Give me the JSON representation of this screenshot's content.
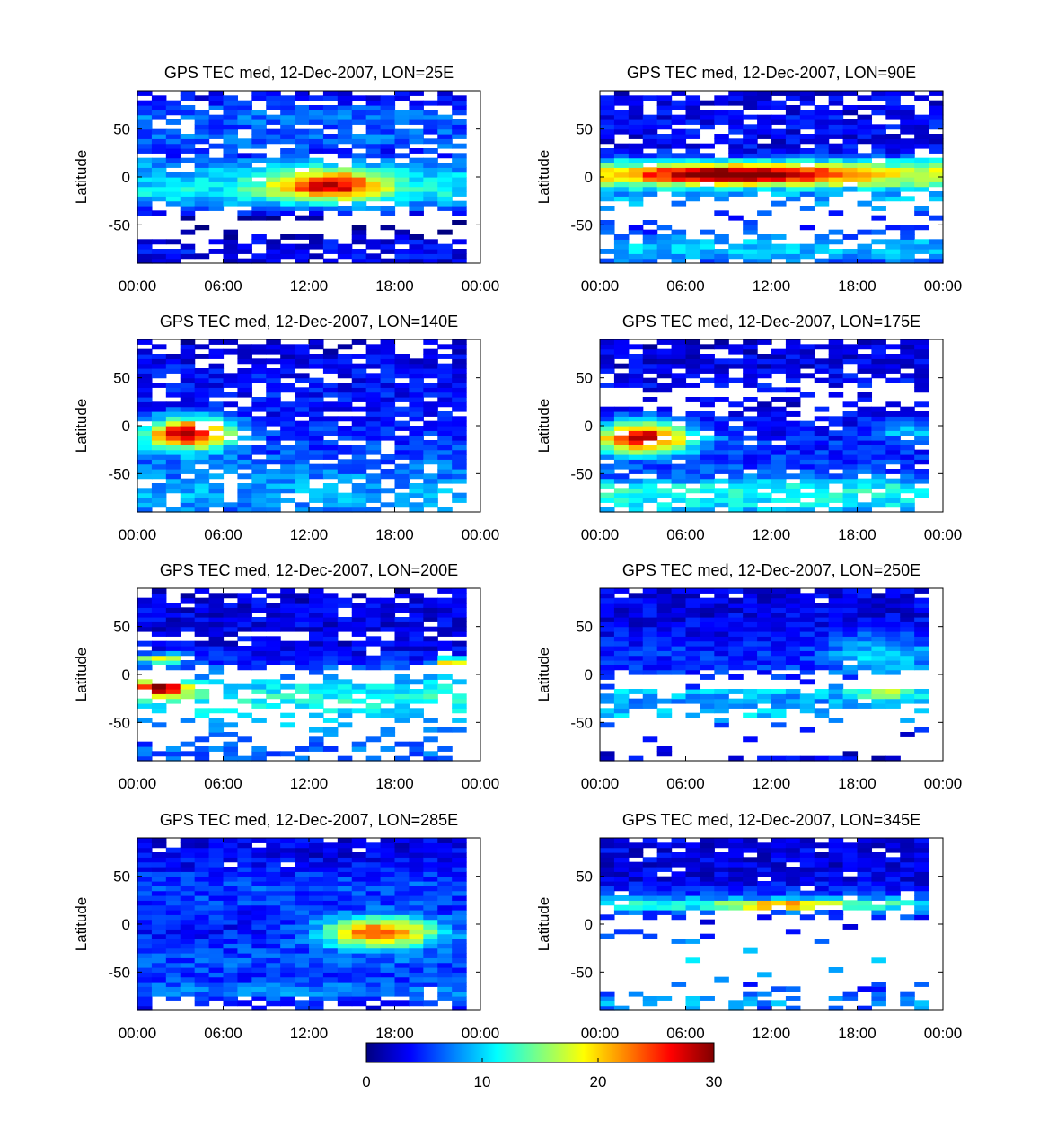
{
  "figure": {
    "ylabel": "Latitude",
    "colorbar": {
      "min": 0,
      "max": 30,
      "tick_labels": [
        "0",
        "10",
        "20",
        "30"
      ],
      "tick_values": [
        0,
        10,
        20,
        30
      ],
      "colormap": "jet"
    }
  },
  "chart_data": [
    {
      "type": "heatmap",
      "title": "GPS TEC med, 12-Dec-2007, LON=25E",
      "ylabel": "Latitude",
      "x_ticks": [
        "00:00",
        "06:00",
        "12:00",
        "18:00",
        "00:00"
      ],
      "y_ticks": [
        "50",
        "0",
        "-50"
      ],
      "y_tick_values": [
        50,
        0,
        -50
      ],
      "xlim_hours": [
        0,
        24
      ],
      "ylim": [
        -90,
        90
      ],
      "bin": {
        "hours": 1,
        "lat": 5
      },
      "data_end_hour": 23,
      "lat_profile": [
        [
          -90,
          2,
          0.5
        ],
        [
          -80,
          4,
          0.9
        ],
        [
          -65,
          3,
          0.6
        ],
        [
          -55,
          0,
          0.1
        ],
        [
          -45,
          0,
          0.15
        ],
        [
          -35,
          5,
          0.75
        ],
        [
          -25,
          9,
          0.95
        ],
        [
          -15,
          11,
          1
        ],
        [
          -5,
          10,
          1
        ],
        [
          5,
          9,
          0.95
        ],
        [
          15,
          8,
          0.9
        ],
        [
          25,
          4,
          0.6
        ],
        [
          35,
          7,
          0.9
        ],
        [
          50,
          6,
          0.85
        ],
        [
          65,
          7,
          0.8
        ],
        [
          80,
          4,
          0.6
        ],
        [
          90,
          3,
          0.5
        ]
      ],
      "peaks": [
        {
          "hour": 13.5,
          "lat": -8,
          "dh": 4,
          "dl": 15,
          "amp": 18
        }
      ],
      "seed": 11
    },
    {
      "type": "heatmap",
      "title": "GPS TEC med, 12-Dec-2007, LON=90E",
      "ylabel": "Latitude",
      "x_ticks": [
        "00:00",
        "06:00",
        "12:00",
        "18:00",
        "00:00"
      ],
      "y_ticks": [
        "50",
        "0",
        "-50"
      ],
      "y_tick_values": [
        50,
        0,
        -50
      ],
      "xlim_hours": [
        0,
        24
      ],
      "ylim": [
        -90,
        90
      ],
      "bin": {
        "hours": 1,
        "lat": 5
      },
      "data_end_hour": 24,
      "lat_profile": [
        [
          -90,
          6,
          0.6
        ],
        [
          -80,
          9,
          0.85
        ],
        [
          -70,
          10,
          0.8
        ],
        [
          -60,
          6,
          0.3
        ],
        [
          -45,
          5,
          0.1
        ],
        [
          -35,
          6,
          0.15
        ],
        [
          -25,
          9,
          0.3
        ],
        [
          -15,
          8,
          0.95
        ],
        [
          -5,
          16,
          1
        ],
        [
          5,
          18,
          1
        ],
        [
          15,
          12,
          0.95
        ],
        [
          25,
          4,
          0.9
        ],
        [
          40,
          3,
          0.75
        ],
        [
          55,
          4,
          0.8
        ],
        [
          70,
          3,
          0.75
        ],
        [
          85,
          3,
          0.6
        ],
        [
          90,
          3,
          0.5
        ]
      ],
      "peaks": [
        {
          "hour": 10,
          "lat": 3,
          "dh": 7,
          "dl": 9,
          "amp": 16
        }
      ],
      "seed": 22
    },
    {
      "type": "heatmap",
      "title": "GPS TEC med, 12-Dec-2007, LON=140E",
      "ylabel": "Latitude",
      "x_ticks": [
        "00:00",
        "06:00",
        "12:00",
        "18:00",
        "00:00"
      ],
      "y_ticks": [
        "50",
        "0",
        "-50"
      ],
      "y_tick_values": [
        50,
        0,
        -50
      ],
      "xlim_hours": [
        0,
        24
      ],
      "ylim": [
        -90,
        90
      ],
      "bin": {
        "hours": 1,
        "lat": 5
      },
      "data_end_hour": 23,
      "lat_profile": [
        [
          -90,
          7,
          0.65
        ],
        [
          -75,
          9,
          0.75
        ],
        [
          -60,
          8,
          0.7
        ],
        [
          -45,
          7,
          0.85
        ],
        [
          -30,
          6,
          0.9
        ],
        [
          -15,
          5,
          0.9
        ],
        [
          0,
          5,
          0.85
        ],
        [
          15,
          4,
          0.8
        ],
        [
          30,
          4,
          0.8
        ],
        [
          45,
          4,
          0.85
        ],
        [
          60,
          4,
          0.85
        ],
        [
          75,
          3,
          0.75
        ],
        [
          90,
          2,
          0.5
        ]
      ],
      "peaks": [
        {
          "hour": 3.5,
          "lat": -8,
          "dh": 3,
          "dl": 16,
          "amp": 24
        }
      ],
      "seed": 33
    },
    {
      "type": "heatmap",
      "title": "GPS TEC med, 12-Dec-2007, LON=175E",
      "ylabel": "Latitude",
      "x_ticks": [
        "00:00",
        "06:00",
        "12:00",
        "18:00",
        "00:00"
      ],
      "y_ticks": [
        "50",
        "0",
        "-50"
      ],
      "y_tick_values": [
        50,
        0,
        -50
      ],
      "xlim_hours": [
        0,
        24
      ],
      "ylim": [
        -90,
        90
      ],
      "bin": {
        "hours": 1,
        "lat": 5
      },
      "data_end_hour": 23,
      "lat_profile": [
        [
          -90,
          9,
          0.6
        ],
        [
          -80,
          11,
          0.75
        ],
        [
          -65,
          12,
          0.8
        ],
        [
          -50,
          6,
          0.85
        ],
        [
          -35,
          5,
          0.9
        ],
        [
          -20,
          5,
          0.9
        ],
        [
          -5,
          4,
          0.9
        ],
        [
          10,
          4,
          0.85
        ],
        [
          25,
          3,
          0.3
        ],
        [
          35,
          3,
          0.2
        ],
        [
          45,
          4,
          0.75
        ],
        [
          60,
          3,
          0.9
        ],
        [
          75,
          3,
          0.85
        ],
        [
          90,
          2,
          0.5
        ]
      ],
      "peaks": [
        {
          "hour": 3,
          "lat": -12,
          "dh": 3.5,
          "dl": 16,
          "amp": 24
        },
        {
          "hour": 21.5,
          "lat": -5,
          "dh": 2,
          "dl": 10,
          "amp": 6
        }
      ],
      "seed": 44
    },
    {
      "type": "heatmap",
      "title": "GPS TEC med, 12-Dec-2007, LON=200E",
      "ylabel": "Latitude",
      "x_ticks": [
        "00:00",
        "06:00",
        "12:00",
        "18:00",
        "00:00"
      ],
      "y_ticks": [
        "50",
        "0",
        "-50"
      ],
      "y_tick_values": [
        50,
        0,
        -50
      ],
      "xlim_hours": [
        0,
        24
      ],
      "ylim": [
        -90,
        90
      ],
      "bin": {
        "hours": 1,
        "lat": 5
      },
      "data_end_hour": 23,
      "lat_profile": [
        [
          -90,
          6,
          0.5
        ],
        [
          -80,
          7,
          0.6
        ],
        [
          -70,
          6,
          0.1
        ],
        [
          -55,
          8,
          0.25
        ],
        [
          -45,
          10,
          0.35
        ],
        [
          -35,
          11,
          0.4
        ],
        [
          -25,
          12,
          0.6
        ],
        [
          -15,
          11,
          0.9
        ],
        [
          -5,
          9,
          0.3
        ],
        [
          5,
          6,
          0.1
        ],
        [
          12,
          5,
          0.95
        ],
        [
          22,
          4,
          0.95
        ],
        [
          32,
          3,
          0.9
        ],
        [
          40,
          3,
          0.1
        ],
        [
          45,
          3,
          0.95
        ],
        [
          60,
          3,
          0.95
        ],
        [
          75,
          3,
          0.85
        ],
        [
          90,
          2,
          0.5
        ]
      ],
      "peaks": [
        {
          "hour": 1.5,
          "lat": -15,
          "dh": 2,
          "dl": 8,
          "amp": 20
        },
        {
          "hour": 1.5,
          "lat": 17,
          "dh": 2,
          "dl": 5,
          "amp": 15
        },
        {
          "hour": 22,
          "lat": 13,
          "dh": 1.2,
          "dl": 5,
          "amp": 18
        }
      ],
      "seed": 55
    },
    {
      "type": "heatmap",
      "title": "GPS TEC med, 12-Dec-2007, LON=250E",
      "ylabel": "Latitude",
      "x_ticks": [
        "00:00",
        "06:00",
        "12:00",
        "18:00",
        "00:00"
      ],
      "y_ticks": [
        "50",
        "0",
        "-50"
      ],
      "y_tick_values": [
        50,
        0,
        -50
      ],
      "xlim_hours": [
        0,
        24
      ],
      "ylim": [
        -90,
        90
      ],
      "bin": {
        "hours": 1,
        "lat": 5
      },
      "data_end_hour": 23,
      "lat_profile": [
        [
          -90,
          3,
          0.35
        ],
        [
          -80,
          3,
          0.1
        ],
        [
          -60,
          4,
          0.06
        ],
        [
          -45,
          10,
          0.15
        ],
        [
          -35,
          9,
          0.45
        ],
        [
          -25,
          8,
          0.95
        ],
        [
          -18,
          10,
          0.95
        ],
        [
          -12,
          6,
          0.08
        ],
        [
          -5,
          5,
          0.05
        ],
        [
          5,
          5,
          0.95
        ],
        [
          20,
          5,
          1
        ],
        [
          40,
          4,
          1
        ],
        [
          60,
          3,
          1
        ],
        [
          80,
          3,
          0.95
        ],
        [
          90,
          3,
          0.85
        ]
      ],
      "peaks": [
        {
          "hour": 20,
          "lat": 20,
          "dh": 4,
          "dl": 25,
          "amp": 5
        },
        {
          "hour": 20,
          "lat": -20,
          "dh": 2,
          "dl": 3,
          "amp": 12
        }
      ],
      "seed": 66
    },
    {
      "type": "heatmap",
      "title": "GPS TEC med, 12-Dec-2007, LON=285E",
      "ylabel": "Latitude",
      "x_ticks": [
        "00:00",
        "06:00",
        "12:00",
        "18:00",
        "00:00"
      ],
      "y_ticks": [
        "50",
        "0",
        "-50"
      ],
      "y_tick_values": [
        50,
        0,
        -50
      ],
      "xlim_hours": [
        0,
        24
      ],
      "ylim": [
        -90,
        90
      ],
      "bin": {
        "hours": 1,
        "lat": 5
      },
      "data_end_hour": 23,
      "lat_profile": [
        [
          -90,
          3,
          0.25
        ],
        [
          -80,
          5,
          0.7
        ],
        [
          -70,
          8,
          0.95
        ],
        [
          -55,
          5,
          1
        ],
        [
          -40,
          6,
          1
        ],
        [
          -20,
          5,
          1
        ],
        [
          0,
          4,
          1
        ],
        [
          20,
          5,
          1
        ],
        [
          40,
          6,
          1
        ],
        [
          60,
          4,
          1
        ],
        [
          75,
          3,
          0.95
        ],
        [
          90,
          3,
          0.9
        ]
      ],
      "peaks": [
        {
          "hour": 17,
          "lat": -8,
          "dh": 4,
          "dl": 16,
          "amp": 20
        }
      ],
      "seed": 77
    },
    {
      "type": "heatmap",
      "title": "GPS TEC med, 12-Dec-2007, LON=345E",
      "ylabel": "Latitude",
      "x_ticks": [
        "00:00",
        "06:00",
        "12:00",
        "18:00",
        "00:00"
      ],
      "y_ticks": [
        "50",
        "0",
        "-50"
      ],
      "y_tick_values": [
        50,
        0,
        -50
      ],
      "xlim_hours": [
        0,
        24
      ],
      "ylim": [
        -90,
        90
      ],
      "bin": {
        "hours": 1,
        "lat": 5
      },
      "data_end_hour": 23,
      "lat_profile": [
        [
          -90,
          6,
          0.25
        ],
        [
          -80,
          9,
          0.6
        ],
        [
          -70,
          5,
          0.2
        ],
        [
          -55,
          7,
          0.06
        ],
        [
          -40,
          9,
          0.06
        ],
        [
          -20,
          8,
          0.1
        ],
        [
          -5,
          4,
          0.08
        ],
        [
          5,
          4,
          0.15
        ],
        [
          15,
          7,
          0.6
        ],
        [
          20,
          14,
          0.95
        ],
        [
          30,
          6,
          0.95
        ],
        [
          45,
          3,
          0.95
        ],
        [
          60,
          3,
          0.95
        ],
        [
          75,
          3,
          0.9
        ],
        [
          90,
          3,
          0.85
        ]
      ],
      "peaks": [
        {
          "hour": 13,
          "lat": 20,
          "dh": 4,
          "dl": 4,
          "amp": 14
        }
      ],
      "seed": 88
    }
  ]
}
